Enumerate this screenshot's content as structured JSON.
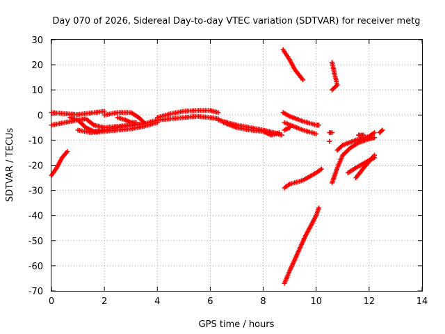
{
  "chart_data": {
    "type": "scatter",
    "title": "Day 070 of 2026, Sidereal Day-to-day VTEC variation (SDTVAR) for receiver metg",
    "xlabel": "GPS time / hours",
    "ylabel": "SDTVAR / TECUs",
    "xlim": [
      0,
      14
    ],
    "ylim": [
      -70,
      30
    ],
    "x_ticks": [
      "0",
      "2",
      "4",
      "6",
      "8",
      "10",
      "12",
      "14"
    ],
    "y_ticks": [
      "30",
      "20",
      "10",
      "0",
      "-10",
      "-20",
      "-30",
      "-40",
      "-50",
      "-60",
      "-70"
    ],
    "grid": true,
    "marker": "+",
    "series": [
      {
        "color": "#ff0000",
        "tracks": [
          [
            [
              0.0,
              -24
            ],
            [
              0.2,
              -21
            ],
            [
              0.4,
              -17
            ],
            [
              0.6,
              -14.5
            ]
          ],
          [
            [
              0.0,
              1
            ],
            [
              0.5,
              0.5
            ],
            [
              1.0,
              0.2
            ],
            [
              1.5,
              0.8
            ],
            [
              2.0,
              1.5
            ]
          ],
          [
            [
              0.0,
              -4
            ],
            [
              0.5,
              -3
            ],
            [
              1.0,
              -2
            ],
            [
              1.3,
              -1.5
            ],
            [
              1.6,
              -4
            ],
            [
              2.0,
              -5
            ],
            [
              2.5,
              -4.5
            ],
            [
              3.0,
              -4
            ],
            [
              3.5,
              -3.5
            ]
          ],
          [
            [
              0.7,
              -1
            ],
            [
              1.0,
              -2
            ],
            [
              1.3,
              -5
            ],
            [
              1.6,
              -6.5
            ],
            [
              2.0,
              -6
            ],
            [
              2.5,
              -5
            ],
            [
              3.0,
              -4.2
            ],
            [
              3.5,
              -3.5
            ],
            [
              4.0,
              -2
            ]
          ],
          [
            [
              1.0,
              -6
            ],
            [
              1.5,
              -7
            ],
            [
              2.0,
              -6.5
            ],
            [
              2.5,
              -6
            ],
            [
              3.0,
              -5.5
            ],
            [
              3.5,
              -4.5
            ],
            [
              4.0,
              -3
            ]
          ],
          [
            [
              2.0,
              0
            ],
            [
              2.5,
              1
            ],
            [
              3.0,
              1
            ],
            [
              3.3,
              -1
            ],
            [
              3.5,
              -3
            ]
          ],
          [
            [
              2.5,
              -1
            ],
            [
              2.8,
              -2
            ],
            [
              3.0,
              -3
            ],
            [
              3.2,
              -3
            ]
          ],
          [
            [
              4.0,
              -1
            ],
            [
              4.5,
              0.5
            ],
            [
              5.0,
              1.5
            ],
            [
              5.5,
              1.8
            ],
            [
              6.0,
              1.8
            ],
            [
              6.3,
              1
            ]
          ],
          [
            [
              4.0,
              -2
            ],
            [
              4.5,
              -1.5
            ],
            [
              5.0,
              -1
            ],
            [
              5.5,
              -0.5
            ],
            [
              6.0,
              -1
            ],
            [
              6.3,
              -1.5
            ]
          ],
          [
            [
              6.3,
              -2
            ],
            [
              7.0,
              -4
            ],
            [
              7.5,
              -5
            ],
            [
              8.0,
              -6
            ],
            [
              8.4,
              -7
            ],
            [
              8.7,
              -8
            ]
          ],
          [
            [
              6.5,
              -3
            ],
            [
              7.0,
              -5
            ],
            [
              7.5,
              -6
            ],
            [
              8.0,
              -6.5
            ],
            [
              8.3,
              -8
            ],
            [
              8.6,
              -7
            ]
          ],
          [
            [
              8.8,
              -6
            ],
            [
              9.0,
              -5
            ]
          ],
          [
            [
              8.75,
              26
            ],
            [
              9.0,
              22
            ],
            [
              9.2,
              18
            ],
            [
              9.5,
              14
            ]
          ],
          [
            [
              8.75,
              1
            ],
            [
              9.0,
              -0.5
            ],
            [
              9.5,
              -2.5
            ],
            [
              10.0,
              -4
            ],
            [
              10.1,
              -4
            ]
          ],
          [
            [
              8.8,
              -3
            ],
            [
              9.5,
              -6
            ],
            [
              10.0,
              -7.5
            ]
          ],
          [
            [
              8.8,
              -29
            ],
            [
              9.0,
              -27.5
            ],
            [
              9.5,
              -26
            ],
            [
              10.0,
              -23
            ],
            [
              10.2,
              -21.5
            ]
          ],
          [
            [
              8.8,
              -67
            ],
            [
              9.0,
              -62
            ],
            [
              9.3,
              -55
            ],
            [
              9.6,
              -48
            ],
            [
              10.0,
              -40
            ],
            [
              10.1,
              -37
            ]
          ],
          [
            [
              10.6,
              -27
            ],
            [
              10.8,
              -21
            ],
            [
              11.0,
              -16
            ],
            [
              11.3,
              -13
            ],
            [
              11.6,
              -11
            ],
            [
              12.0,
              -9.5
            ],
            [
              12.2,
              -9
            ]
          ],
          [
            [
              10.8,
              -14
            ],
            [
              11.0,
              -12
            ],
            [
              11.5,
              -10
            ],
            [
              12.0,
              -8.5
            ],
            [
              12.2,
              -7
            ]
          ],
          [
            [
              11.2,
              -23
            ],
            [
              11.5,
              -21
            ],
            [
              12.0,
              -18
            ],
            [
              12.2,
              -17
            ]
          ],
          [
            [
              11.5,
              -25
            ],
            [
              11.8,
              -21
            ],
            [
              12.2,
              -16
            ]
          ],
          [
            [
              10.6,
              21
            ],
            [
              10.7,
              16
            ],
            [
              10.8,
              12
            ],
            [
              10.6,
              10
            ]
          ],
          [
            [
              10.5,
              -7
            ],
            [
              10.6,
              -7
            ]
          ],
          [
            [
              10.5,
              -10.5
            ]
          ],
          [
            [
              12.4,
              -7
            ],
            [
              12.5,
              -6
            ]
          ],
          [
            [
              11.6,
              -8
            ],
            [
              11.8,
              -8
            ]
          ]
        ]
      }
    ]
  }
}
